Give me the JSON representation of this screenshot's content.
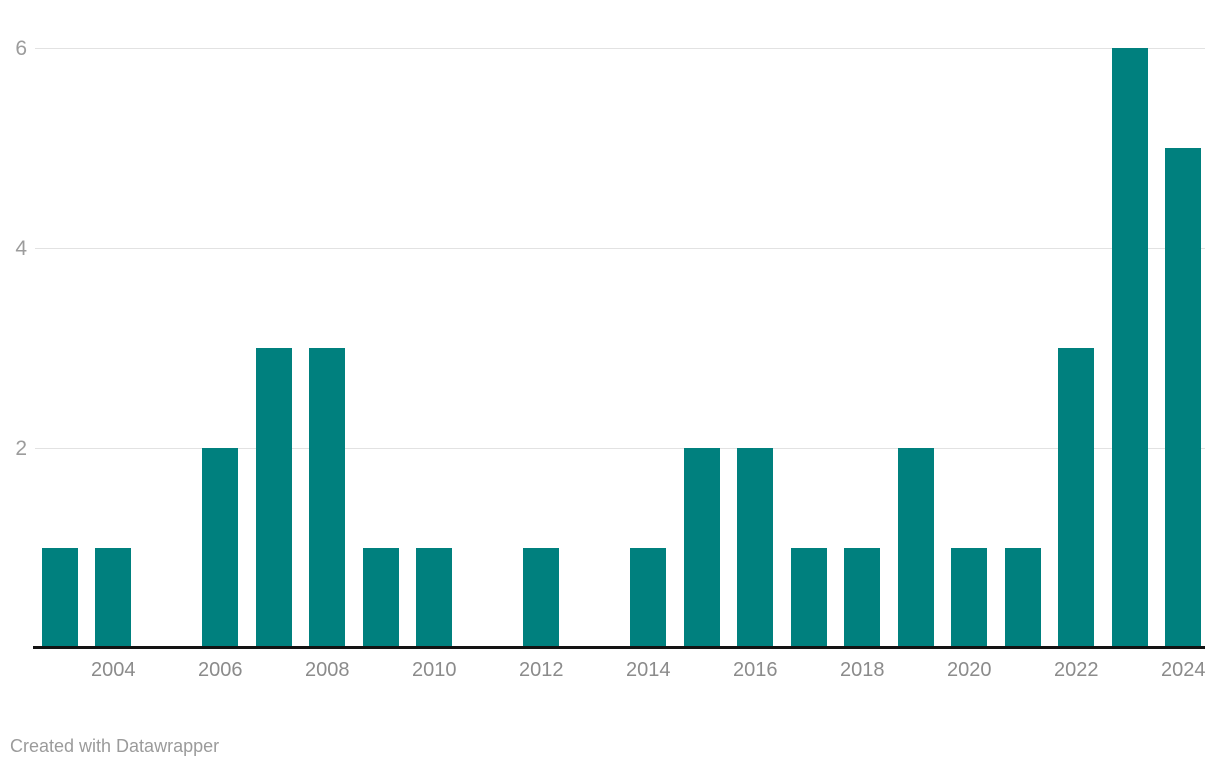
{
  "footer": {
    "attribution": "Created with Datawrapper"
  },
  "chart_data": {
    "type": "bar",
    "title": "",
    "xlabel": "",
    "ylabel": "",
    "categories": [
      "2003",
      "2004",
      "2005",
      "2006",
      "2007",
      "2008",
      "2009",
      "2010",
      "2011",
      "2012",
      "2013",
      "2014",
      "2015",
      "2016",
      "2017",
      "2018",
      "2019",
      "2020",
      "2021",
      "2022",
      "2023",
      "2024"
    ],
    "values": [
      1,
      1,
      0,
      2,
      3,
      3,
      1,
      1,
      0,
      1,
      0,
      1,
      2,
      2,
      1,
      1,
      2,
      1,
      1,
      3,
      6,
      5
    ],
    "x_tick_labels": [
      "2004",
      "2006",
      "2008",
      "2010",
      "2012",
      "2014",
      "2016",
      "2018",
      "2020",
      "2022",
      "2024"
    ],
    "y_ticks": [
      2,
      4,
      6
    ],
    "ylim": [
      0,
      6
    ],
    "grid": "horizontal",
    "legend": "none",
    "colors": {
      "bar": "#00807E",
      "gridline": "#e2e2e2",
      "axis_line": "#131313",
      "x_tick_label": "#8b8b8b",
      "y_tick_label": "#9c9c9c",
      "attribution": "#9b9b9b",
      "background": "#ffffff"
    }
  }
}
